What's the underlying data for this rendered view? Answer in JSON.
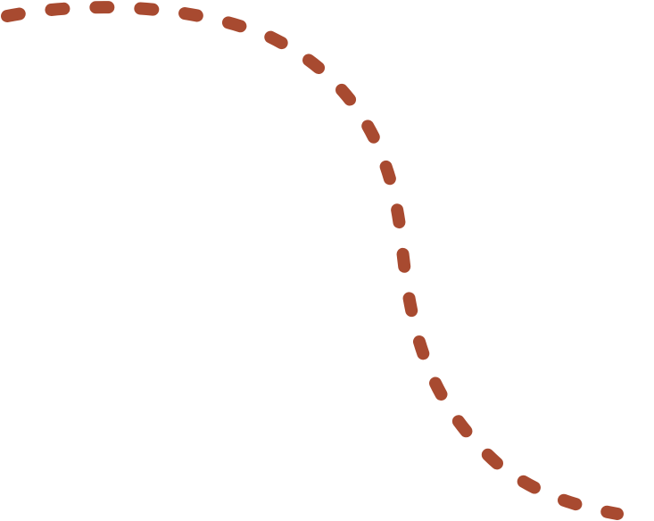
{
  "decoration": {
    "shape": "dashed-s-curve",
    "stroke_color": "#A84A30",
    "line_style": "dashed",
    "line_cap": "round"
  }
}
